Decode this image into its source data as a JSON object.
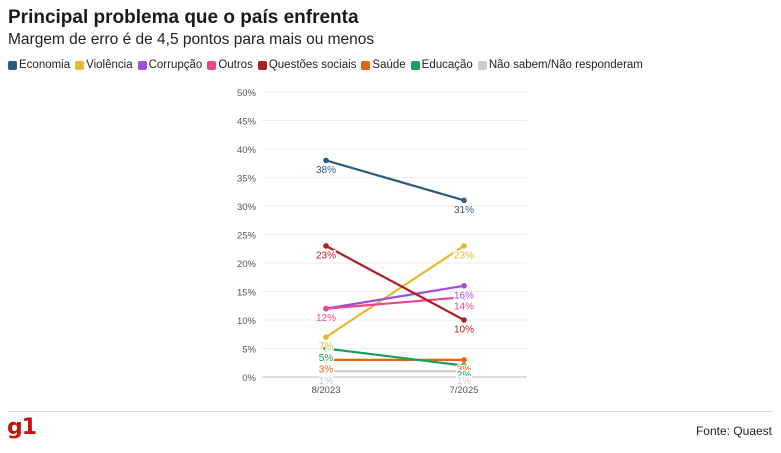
{
  "header": {
    "title": "Principal problema que o país enfrenta",
    "subtitle": "Margem de erro é de 4,5 pontos para mais ou menos"
  },
  "footer": {
    "logo_text": "g1",
    "source": "Fonte: Quaest"
  },
  "chart_data": {
    "type": "line",
    "title": "Principal problema que o país enfrenta",
    "subtitle": "Margem de erro é de 4,5 pontos para mais ou menos",
    "x": [
      "8/2023",
      "7/2025"
    ],
    "ylim": [
      0,
      50
    ],
    "yticks": [
      0,
      5,
      10,
      15,
      20,
      25,
      30,
      35,
      40,
      45,
      50
    ],
    "ytick_labels": [
      "0%",
      "5%",
      "10%",
      "15%",
      "20%",
      "25%",
      "30%",
      "35%",
      "40%",
      "45%",
      "50%"
    ],
    "grid": true,
    "legend_position": "top-left",
    "series": [
      {
        "name": "Economia",
        "color": "#2f5a7f",
        "values": [
          38,
          31
        ],
        "labels": [
          "38%",
          "31%"
        ]
      },
      {
        "name": "Violência",
        "color": "#e8b930",
        "values": [
          7,
          23
        ],
        "labels": [
          "7%",
          "23%"
        ]
      },
      {
        "name": "Corrupção",
        "color": "#9b4fd6",
        "values": [
          12,
          16
        ],
        "labels": [
          "12%",
          "16%"
        ]
      },
      {
        "name": "Outros",
        "color": "#e8488a",
        "values": [
          12,
          14
        ],
        "labels": [
          "12%",
          "14%"
        ]
      },
      {
        "name": "Questões sociais",
        "color": "#b01e24",
        "values": [
          23,
          10
        ],
        "labels": [
          "23%",
          "10%"
        ]
      },
      {
        "name": "Saúde",
        "color": "#e8640c",
        "values": [
          3,
          3
        ],
        "labels": [
          "3%",
          "3%"
        ]
      },
      {
        "name": "Educação",
        "color": "#18a05a",
        "values": [
          5,
          2
        ],
        "labels": [
          "5%",
          "2%"
        ]
      },
      {
        "name": "Não sabem/Não responderam",
        "color": "#cccccc",
        "values": [
          1,
          1
        ],
        "labels": [
          "1%",
          "1%"
        ]
      }
    ]
  }
}
